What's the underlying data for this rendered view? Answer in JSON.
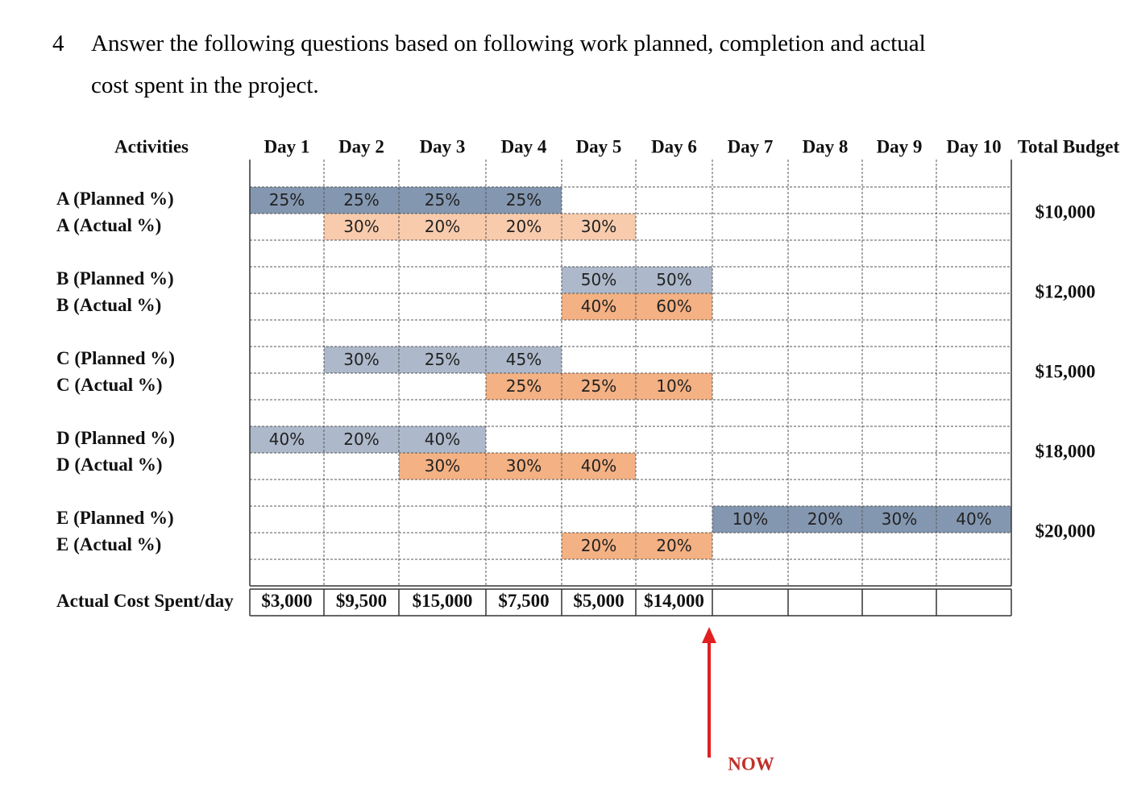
{
  "question": {
    "number": "4",
    "lines": [
      "Answer the following questions based on following work planned, completion and actual",
      "cost spent in the project."
    ]
  },
  "table": {
    "header": [
      "Activities",
      "Day 1",
      "Day 2",
      "Day 3",
      "Day 4",
      "Day 5",
      "Day 6",
      "Day 7",
      "Day 8",
      "Day 9",
      "Day 10",
      "Total Budget"
    ],
    "activities": [
      {
        "planned_label": "A (Planned %)",
        "actual_label": "A (Actual %)",
        "budget": "$10,000",
        "planned_color": "#8497b0",
        "actual_color": "#f8cbad",
        "planned": [
          "25%",
          "25%",
          "25%",
          "25%",
          null,
          null,
          null,
          null,
          null,
          null
        ],
        "actual": [
          null,
          "30%",
          "20%",
          "20%",
          "30%",
          null,
          null,
          null,
          null,
          null
        ]
      },
      {
        "planned_label": "B (Planned %)",
        "actual_label": "B (Actual %)",
        "budget": "$12,000",
        "planned_color": "#adb9ca",
        "actual_color": "#f4b183",
        "planned": [
          null,
          null,
          null,
          null,
          "50%",
          "50%",
          null,
          null,
          null,
          null
        ],
        "actual": [
          null,
          null,
          null,
          null,
          "40%",
          "60%",
          null,
          null,
          null,
          null
        ]
      },
      {
        "planned_label": "C (Planned %)",
        "actual_label": "C (Actual %)",
        "budget": "$15,000",
        "planned_color": "#adb9ca",
        "actual_color": "#f4b183",
        "planned": [
          null,
          "30%",
          "25%",
          "45%",
          null,
          null,
          null,
          null,
          null,
          null
        ],
        "actual": [
          null,
          null,
          null,
          "25%",
          "25%",
          "10%",
          null,
          null,
          null,
          null
        ]
      },
      {
        "planned_label": "D (Planned %)",
        "actual_label": "D (Actual %)",
        "budget": "$18,000",
        "planned_color": "#adb9ca",
        "actual_color": "#f4b183",
        "planned": [
          "40%",
          "20%",
          "40%",
          null,
          null,
          null,
          null,
          null,
          null,
          null
        ],
        "actual": [
          null,
          null,
          "30%",
          "30%",
          "40%",
          null,
          null,
          null,
          null,
          null
        ]
      },
      {
        "planned_label": "E (Planned %)",
        "actual_label": "E (Actual %)",
        "budget": "$20,000",
        "planned_color": "#8497b0",
        "actual_color": "#f4b183",
        "planned": [
          null,
          null,
          null,
          null,
          null,
          null,
          "10%",
          "20%",
          "30%",
          "40%"
        ],
        "actual": [
          null,
          null,
          null,
          null,
          "20%",
          "20%",
          null,
          null,
          null,
          null
        ]
      }
    ],
    "cost_label": "Actual Cost Spent/day",
    "cost": [
      "$3,000",
      "$9,500",
      "$15,000",
      "$7,500",
      "$5,000",
      "$14,000",
      null,
      null,
      null,
      null
    ]
  },
  "annotation": "NOW"
}
